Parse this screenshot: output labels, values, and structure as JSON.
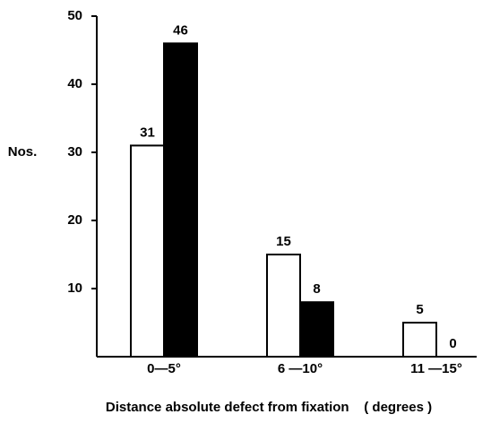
{
  "chart_data": {
    "type": "bar",
    "y_label": "Nos.",
    "x_label": "Distance absolute defect from fixation    ( degrees )",
    "categories": [
      "0—5°",
      "6 —10°",
      "11 —15°"
    ],
    "series": [
      {
        "color": "#ffffff",
        "values": [
          31,
          15,
          5
        ]
      },
      {
        "color": "#000000",
        "values": [
          46,
          8,
          0
        ]
      }
    ],
    "ylim": [
      0,
      50
    ],
    "yticks": [
      10,
      20,
      30,
      40,
      50
    ],
    "grid": false
  }
}
